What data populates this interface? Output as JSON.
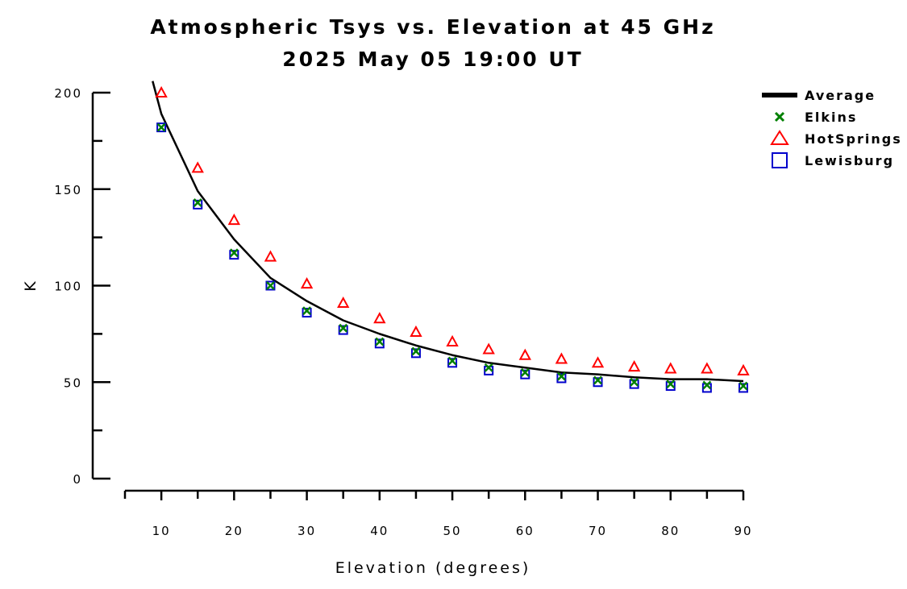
{
  "chart_data": {
    "type": "line",
    "title": "Atmospheric Tsys vs. Elevation at 45 GHz",
    "subtitle": "2025 May 05 19:00 UT",
    "xlabel": "Elevation (degrees)",
    "ylabel": "K",
    "xlim": [
      5,
      90
    ],
    "ylim": [
      0,
      200
    ],
    "xticks": [
      10,
      20,
      30,
      40,
      50,
      60,
      70,
      80,
      90
    ],
    "yticks": [
      0,
      50,
      100,
      150,
      200
    ],
    "x": [
      10,
      15,
      20,
      25,
      30,
      35,
      40,
      45,
      50,
      55,
      60,
      65,
      70,
      75,
      80,
      85,
      90
    ],
    "legend_position": "top-right",
    "series": [
      {
        "name": "Average",
        "marker": "line",
        "color": "#000000",
        "x_start": 8.8,
        "y_start": 206,
        "values": [
          189,
          149,
          124,
          104,
          92,
          82,
          75,
          69,
          64,
          60,
          57.5,
          55,
          54,
          52.5,
          51.5,
          51.5,
          50.5
        ]
      },
      {
        "name": "Elkins",
        "marker": "x",
        "color": "#008000",
        "values": [
          182,
          143,
          117,
          100,
          87,
          78,
          71,
          66,
          61,
          57.5,
          55,
          53,
          51,
          50,
          49,
          48.5,
          48
        ]
      },
      {
        "name": "HotSprings",
        "marker": "triangle",
        "color": "#ff0000",
        "values": [
          200,
          161,
          134,
          115,
          101,
          91,
          83,
          76,
          71,
          67,
          64,
          62,
          60,
          58,
          57,
          57,
          56
        ]
      },
      {
        "name": "Lewisburg",
        "marker": "square",
        "color": "#0000cc",
        "values": [
          182,
          142,
          116,
          100,
          86,
          77,
          70,
          65,
          60,
          56,
          54,
          52,
          50,
          49,
          48,
          47,
          47
        ]
      }
    ]
  }
}
